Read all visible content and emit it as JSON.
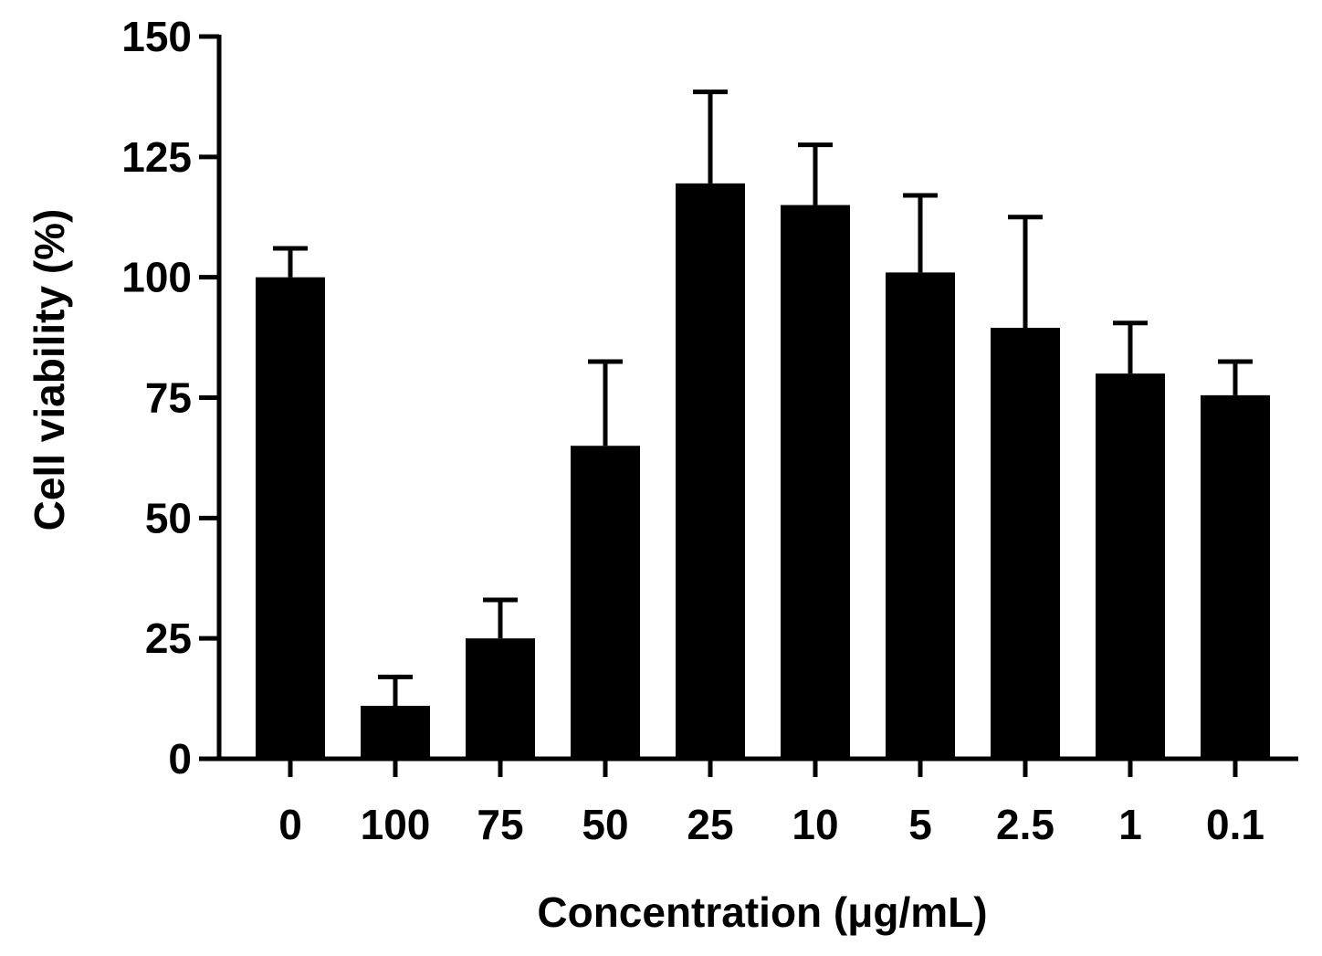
{
  "chart_data": {
    "type": "bar",
    "title": "",
    "xlabel": "Concentration (μg/mL)",
    "ylabel": "Cell viability (%)",
    "ylim": [
      0,
      150
    ],
    "yticks": [
      0,
      25,
      50,
      75,
      100,
      125,
      150
    ],
    "ytick_labels": [
      "0",
      "25",
      "50",
      "75",
      "100",
      "125",
      "150"
    ],
    "grid": false,
    "categories": [
      "0",
      "100",
      "75",
      "50",
      "25",
      "10",
      "5",
      "2.5",
      "1",
      "0.1"
    ],
    "values": [
      100,
      11,
      25,
      65,
      119.5,
      115,
      101,
      89.5,
      80,
      75.5
    ],
    "error_upper": [
      6,
      6,
      8,
      17.5,
      19,
      12.5,
      16,
      23,
      10.5,
      7
    ],
    "bar_color": "#000000"
  }
}
